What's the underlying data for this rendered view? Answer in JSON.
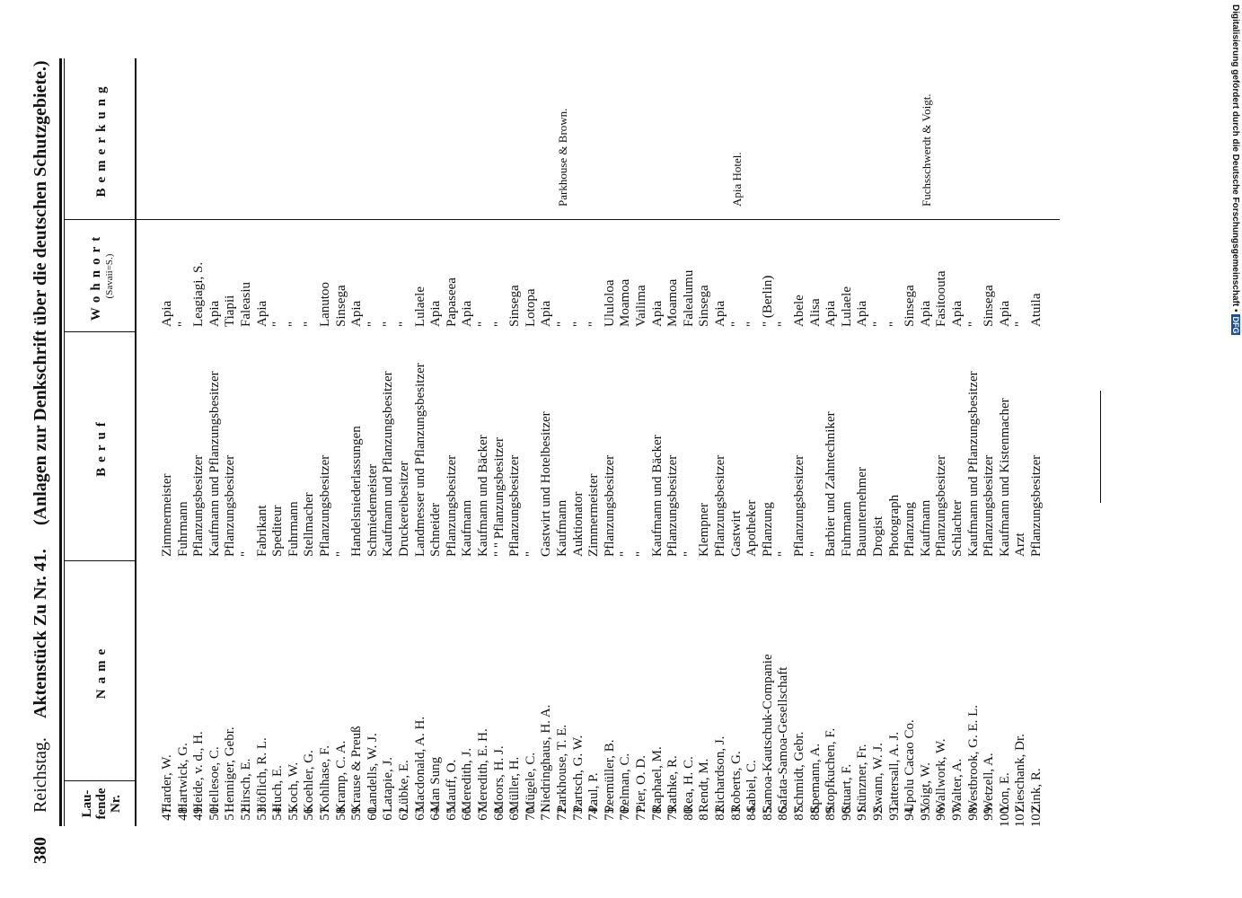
{
  "header": {
    "page_number": "380",
    "publication": "Reichstag.",
    "document": "Aktenstück Zu Nr. 41.",
    "subtitle": "(Anlagen zur Denkschrift über die deutschen Schutzgebiete.)"
  },
  "table": {
    "columns": {
      "nr": "Lau-\nfende\nNr.",
      "name": "Name",
      "occupation": "Beruf",
      "residence": "Wohnort",
      "residence_note": "(Savaii=S.)",
      "remark": "Bemerkung"
    },
    "rows": [
      {
        "nr": "47.",
        "name": "Harder, W.",
        "occupation": "Zimmermeister",
        "residence": "Apia"
      },
      {
        "nr": "48.",
        "name": "Hartwick, G.",
        "occupation": "Fuhrmann",
        "residence": "\""
      },
      {
        "nr": "49.",
        "name": "Heide, v. d., H.",
        "occupation": "Pflanzungsbesitzer",
        "residence": "Leagiagi, S."
      },
      {
        "nr": "50.",
        "name": "Hellesoe, C.",
        "occupation": "Kaufmann und Pflanzungsbesitzer",
        "residence": "Apia"
      },
      {
        "nr": "51.",
        "name": "Henniger, Gebr.",
        "occupation": "Pflanzungsbesitzer",
        "residence": "Tiapii"
      },
      {
        "nr": "52.",
        "name": "Hirsch, E.",
        "occupation": "\"",
        "residence": "Faleasiu"
      },
      {
        "nr": "53.",
        "name": "Höflich, R. L.",
        "occupation": "Fabrikant",
        "residence": "Apia"
      },
      {
        "nr": "54.",
        "name": "Huch, E.",
        "occupation": "Spediteur",
        "residence": "\""
      },
      {
        "nr": "55.",
        "name": "Koch, W.",
        "occupation": "Fuhrmann",
        "residence": "\""
      },
      {
        "nr": "56.",
        "name": "Koehler, G.",
        "occupation": "Stellmacher",
        "residence": "\""
      },
      {
        "nr": "57.",
        "name": "Kohlhase, F.",
        "occupation": "Pflanzungsbesitzer",
        "residence": "Lanutoo"
      },
      {
        "nr": "58.",
        "name": "Kramp, C. A.",
        "occupation": "\"",
        "residence": "Sinsega"
      },
      {
        "nr": "59.",
        "name": "Krause & Preuß",
        "occupation": "Handelsniederlassungen",
        "residence": "Apia"
      },
      {
        "nr": "60.",
        "name": "Landells, W. J.",
        "occupation": "Schmiedemeister",
        "residence": "\""
      },
      {
        "nr": "61.",
        "name": "Latapie, J.",
        "occupation": "Kaufmann und Pflanzungsbesitzer",
        "residence": "\""
      },
      {
        "nr": "62.",
        "name": "Lübke, E.",
        "occupation": "Druckereibesitzer",
        "residence": "\""
      },
      {
        "nr": "63.",
        "name": "Macdonald, A. H.",
        "occupation": "Landmesser und Pflanzungsbesitzer",
        "residence": "Lulaele"
      },
      {
        "nr": "64.",
        "name": "Man Sung",
        "occupation": "Schneider",
        "residence": "Apia"
      },
      {
        "nr": "65.",
        "name": "Mauff, O.",
        "occupation": "Pflanzungsbesitzer",
        "residence": "Papaseea"
      },
      {
        "nr": "66.",
        "name": "Meredith, J.",
        "occupation": "Kaufmann",
        "residence": "Apia"
      },
      {
        "nr": "67.",
        "name": "Meredith, E. H.",
        "occupation": "Kaufmann und Bäcker",
        "residence": "\""
      },
      {
        "nr": "68.",
        "name": "Moors, H. J.",
        "occupation": "\"  \"  Pflanzungsbesitzer",
        "residence": "\""
      },
      {
        "nr": "69.",
        "name": "Müller, H.",
        "occupation": "Pflanzungsbesitzer",
        "residence": "Sinsega"
      },
      {
        "nr": "70.",
        "name": "Mügele, C.",
        "occupation": "\"",
        "residence": "Lotopa"
      },
      {
        "nr": "71.",
        "name": "Niedringhaus, H. A.",
        "occupation": "Gastwirt und Hotelbesitzer",
        "residence": "Apia"
      },
      {
        "nr": "72.",
        "name": "Parkhouse, T. E.",
        "occupation": "Kaufmann",
        "residence": "\"",
        "remark": "Parkhouse & Brown."
      },
      {
        "nr": "73.",
        "name": "Partsch, G. W.",
        "occupation": "Auktionator",
        "residence": "\""
      },
      {
        "nr": "74.",
        "name": "Paul, P.",
        "occupation": "Zimmermeister",
        "residence": "\""
      },
      {
        "nr": "75.",
        "name": "Peemüller, B.",
        "occupation": "Pflanzungsbesitzer",
        "residence": "Ululoloa"
      },
      {
        "nr": "76.",
        "name": "Pelman, C.",
        "occupation": "\"",
        "residence": "Moamoa"
      },
      {
        "nr": "77.",
        "name": "Pier, O. D.",
        "occupation": "\"",
        "residence": "Vailima"
      },
      {
        "nr": "78.",
        "name": "Raphael, M.",
        "occupation": "Kaufmann und Bäcker",
        "residence": "Apia"
      },
      {
        "nr": "79.",
        "name": "Rathke, R.",
        "occupation": "Pflanzungsbesitzer",
        "residence": "Moamoa"
      },
      {
        "nr": "80.",
        "name": "Rea, H. C.",
        "occupation": "\"",
        "residence": "Falealumu"
      },
      {
        "nr": "81.",
        "name": "Rendt, M.",
        "occupation": "Klempner",
        "residence": "Sinsega"
      },
      {
        "nr": "82.",
        "name": "Richardson, J.",
        "occupation": "Pflanzungsbesitzer",
        "residence": "Apia"
      },
      {
        "nr": "83.",
        "name": "Roberts, G.",
        "occupation": "Gastwirt",
        "residence": "\"",
        "remark": "Apia Hotel."
      },
      {
        "nr": "84.",
        "name": "Sabiel, C.",
        "occupation": "Apotheker",
        "residence": "\""
      },
      {
        "nr": "85.",
        "name": "Samoa-Kautschuk-Companie",
        "occupation": "Pflanzung",
        "residence": "\" (Berlin)"
      },
      {
        "nr": "86.",
        "name": "Safata-Samoa-Gesellschaft",
        "occupation": "\"",
        "residence": "\""
      },
      {
        "nr": "87.",
        "name": "Schmidt, Gebr.",
        "occupation": "Pflanzungsbesitzer",
        "residence": "Abele"
      },
      {
        "nr": "88.",
        "name": "Spemann, A.",
        "occupation": "\"",
        "residence": "Alisa"
      },
      {
        "nr": "89.",
        "name": "Stopfkuchen, F.",
        "occupation": "Barbier und Zahntechniker",
        "residence": "Apia"
      },
      {
        "nr": "90.",
        "name": "Stuart, F.",
        "occupation": "Fuhrmann",
        "residence": "Lulaele"
      },
      {
        "nr": "91.",
        "name": "Stünzner, Fr.",
        "occupation": "Bauunternehmer",
        "residence": "Apia"
      },
      {
        "nr": "92.",
        "name": "Swann, W. J.",
        "occupation": "Drogist",
        "residence": "\""
      },
      {
        "nr": "93.",
        "name": "Tattersall, A. J.",
        "occupation": "Photograph",
        "residence": "\""
      },
      {
        "nr": "94.",
        "name": "Upolu Cacao Co.",
        "occupation": "Pflanzung",
        "residence": "Sinsega"
      },
      {
        "nr": "95.",
        "name": "Voigt, W.",
        "occupation": "Kaufmann",
        "residence": "Apia",
        "remark": "Fuchsschwerdt & Voigt."
      },
      {
        "nr": "96.",
        "name": "Wallwork, W.",
        "occupation": "Pflanzungsbesitzer",
        "residence": "Fasitoouta"
      },
      {
        "nr": "97.",
        "name": "Walter, A.",
        "occupation": "Schlachter",
        "residence": "Apia"
      },
      {
        "nr": "98.",
        "name": "Westbrook, G. E. L.",
        "occupation": "Kaufmann und Pflanzungsbesitzer",
        "residence": "\""
      },
      {
        "nr": "99.",
        "name": "Wetzell, A.",
        "occupation": "Pflanzungsbesitzer",
        "residence": "Sinsega"
      },
      {
        "nr": "100.",
        "name": "Yon, E.",
        "occupation": "Kaufmann und Kistenmacher",
        "residence": "Apia"
      },
      {
        "nr": "101.",
        "name": "Zieschank, Dr.",
        "occupation": "Arzt",
        "residence": "\""
      },
      {
        "nr": "102.",
        "name": "Zink, R.",
        "occupation": "Pflanzungsbesitzer",
        "residence": "Atuila"
      }
    ]
  },
  "footer": {
    "funding_note": "Digitalisierung gefördert durch die Deutsche Forschungsgemeinschaft •",
    "logo": "DFG"
  }
}
